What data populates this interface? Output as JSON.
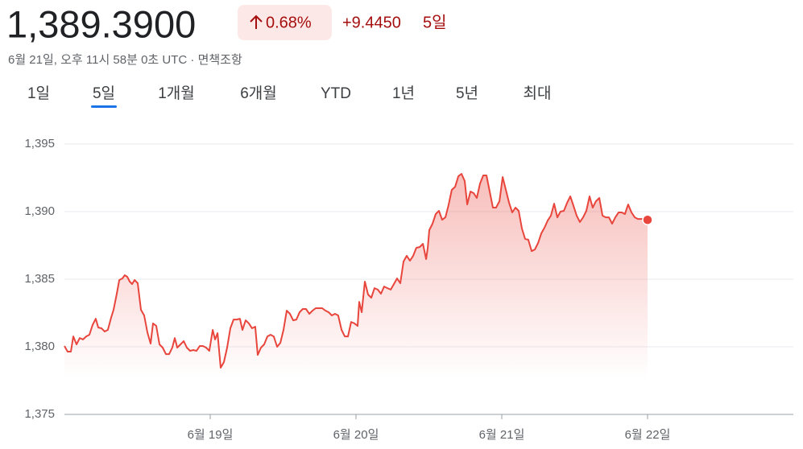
{
  "header": {
    "price": "1,389.3900",
    "change_percent": "0.68%",
    "change": "+9.4450",
    "period": "5일",
    "timestamp": "6월 21일, 오후 11시 58분 0초 UTC",
    "disclaimer": "면책조항"
  },
  "tabs": {
    "items": [
      "1일",
      "5일",
      "1개월",
      "6개월",
      "YTD",
      "1년",
      "5년",
      "최대"
    ],
    "selected": 1
  },
  "chart_data": {
    "type": "line",
    "color": "#e8453c",
    "grid": true,
    "xlim": [
      18,
      23
    ],
    "xticks": [
      {
        "value": 19,
        "label": "6월 19일"
      },
      {
        "value": 20,
        "label": "6월 20일"
      },
      {
        "value": 21,
        "label": "6월 21일"
      },
      {
        "value": 22,
        "label": "6월 22일"
      }
    ],
    "ylim": [
      1375,
      1396.4
    ],
    "yticks": [
      {
        "value": 1375,
        "label": "1,375"
      },
      {
        "value": 1380,
        "label": "1,380"
      },
      {
        "value": 1385,
        "label": "1,385"
      },
      {
        "value": 1390,
        "label": "1,390"
      },
      {
        "value": 1395,
        "label": "1,395"
      }
    ],
    "x": [
      18.0,
      18.022,
      18.044,
      18.061,
      18.083,
      18.105,
      18.127,
      18.149,
      18.171,
      18.193,
      18.215,
      18.232,
      18.254,
      18.276,
      18.298,
      18.32,
      18.337,
      18.359,
      18.376,
      18.398,
      18.414,
      18.431,
      18.448,
      18.464,
      18.481,
      18.503,
      18.525,
      18.547,
      18.569,
      18.591,
      18.608,
      18.63,
      18.652,
      18.674,
      18.696,
      18.718,
      18.74,
      18.757,
      18.774,
      18.796,
      18.818,
      18.84,
      18.862,
      18.884,
      18.906,
      18.928,
      18.95,
      18.972,
      18.994,
      19.017,
      19.033,
      19.05,
      19.072,
      19.094,
      19.116,
      19.138,
      19.16,
      19.182,
      19.204,
      19.221,
      19.243,
      19.265,
      19.287,
      19.309,
      19.326,
      19.348,
      19.37,
      19.392,
      19.414,
      19.436,
      19.459,
      19.481,
      19.503,
      19.525,
      19.547,
      19.569,
      19.591,
      19.613,
      19.635,
      19.657,
      19.68,
      19.702,
      19.724,
      19.746,
      19.768,
      19.79,
      19.812,
      19.834,
      19.856,
      19.878,
      19.901,
      19.923,
      19.945,
      19.967,
      19.989,
      20.011,
      20.022,
      20.039,
      20.061,
      20.083,
      20.105,
      20.127,
      20.149,
      20.171,
      20.193,
      20.216,
      20.238,
      20.26,
      20.282,
      20.304,
      20.326,
      20.348,
      20.37,
      20.392,
      20.414,
      20.437,
      20.459,
      20.481,
      20.492,
      20.503,
      20.525,
      20.547,
      20.569,
      20.591,
      20.613,
      20.635,
      20.657,
      20.68,
      20.702,
      20.724,
      20.746,
      20.763,
      20.785,
      20.807,
      20.829,
      20.851,
      20.873,
      20.895,
      20.917,
      20.939,
      20.961,
      20.984,
      21.006,
      21.028,
      21.05,
      21.072,
      21.094,
      21.116,
      21.138,
      21.16,
      21.182,
      21.205,
      21.227,
      21.249,
      21.271,
      21.293,
      21.315,
      21.337,
      21.359,
      21.381,
      21.403,
      21.426,
      21.448,
      21.47,
      21.492,
      21.514,
      21.536,
      21.558,
      21.58,
      21.602,
      21.624,
      21.646,
      21.669,
      21.691,
      21.713,
      21.735,
      21.757,
      21.779,
      21.801,
      21.823,
      21.845,
      21.867,
      21.89,
      21.912,
      21.934,
      21.978,
      22.0
    ],
    "values": [
      1380.06,
      1379.64,
      1379.64,
      1380.77,
      1380.18,
      1380.65,
      1380.54,
      1380.77,
      1380.89,
      1381.61,
      1382.08,
      1381.43,
      1381.37,
      1381.13,
      1381.25,
      1382.14,
      1382.74,
      1383.93,
      1384.94,
      1385.06,
      1385.3,
      1385.18,
      1384.82,
      1384.64,
      1384.94,
      1384.7,
      1382.74,
      1382.32,
      1381.07,
      1380.24,
      1381.73,
      1381.55,
      1380.18,
      1379.94,
      1379.46,
      1379.46,
      1379.94,
      1380.65,
      1379.94,
      1380.18,
      1380.42,
      1379.94,
      1379.7,
      1379.76,
      1379.7,
      1380.06,
      1380.06,
      1379.94,
      1379.7,
      1381.25,
      1380.54,
      1381.01,
      1378.45,
      1378.87,
      1379.94,
      1381.37,
      1382.02,
      1382.02,
      1382.08,
      1381.25,
      1381.96,
      1381.73,
      1381.37,
      1381.49,
      1379.4,
      1379.94,
      1380.18,
      1380.77,
      1380.89,
      1380.77,
      1380.0,
      1380.3,
      1381.25,
      1382.68,
      1382.44,
      1381.96,
      1382.02,
      1382.56,
      1382.8,
      1382.8,
      1382.44,
      1382.68,
      1382.86,
      1382.86,
      1382.86,
      1382.68,
      1382.56,
      1382.32,
      1382.44,
      1382.32,
      1381.25,
      1380.77,
      1380.77,
      1381.84,
      1381.73,
      1381.55,
      1383.33,
      1382.56,
      1384.82,
      1383.87,
      1383.63,
      1384.34,
      1384.23,
      1383.93,
      1384.46,
      1384.34,
      1384.23,
      1384.64,
      1385.06,
      1384.7,
      1386.31,
      1386.73,
      1386.37,
      1386.73,
      1387.32,
      1387.38,
      1387.62,
      1386.49,
      1387.32,
      1388.63,
      1389.11,
      1389.82,
      1390.06,
      1389.4,
      1389.58,
      1390.48,
      1391.61,
      1391.84,
      1392.62,
      1392.8,
      1392.26,
      1390.53,
      1391.49,
      1391.37,
      1391.01,
      1392.08,
      1392.68,
      1392.68,
      1391.49,
      1390.3,
      1390.3,
      1390.77,
      1392.56,
      1391.61,
      1390.65,
      1389.94,
      1390.3,
      1390.06,
      1388.75,
      1387.98,
      1387.92,
      1387.08,
      1387.2,
      1387.68,
      1388.39,
      1388.81,
      1389.34,
      1389.7,
      1390.59,
      1389.58,
      1390.0,
      1390.06,
      1390.65,
      1391.13,
      1390.42,
      1389.7,
      1389.23,
      1389.58,
      1390.06,
      1391.13,
      1390.3,
      1390.77,
      1391.01,
      1389.7,
      1389.58,
      1389.58,
      1389.11,
      1389.58,
      1389.94,
      1389.94,
      1389.82,
      1390.53,
      1389.94,
      1389.58,
      1389.46,
      1389.46,
      1389.39
    ]
  }
}
